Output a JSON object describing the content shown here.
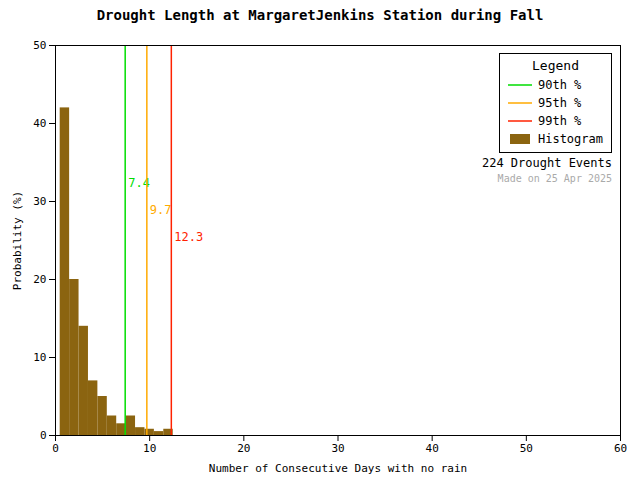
{
  "chart_data": {
    "type": "histogram",
    "title": "Drought Length at MargaretJenkins Station during Fall",
    "xlabel": "Number of Consecutive Days with no rain",
    "ylabel": "Probability (%)",
    "name": "Histogram",
    "color": "#8B6410",
    "bins": [
      0.5,
      1.5,
      2.5,
      3.5,
      4.5,
      5.5,
      6.5,
      7.5,
      8.5,
      9.5,
      10.5,
      11.5,
      12.5,
      13.5,
      14.5,
      15.5,
      16.5,
      17.5,
      18.5,
      19.5,
      20.5,
      21.5,
      22.5,
      23.5,
      24.5,
      25.5,
      26.5,
      27.5,
      28.5,
      29.5,
      30.5,
      31.5,
      32.5,
      33.5,
      34.5,
      35.5,
      36.5,
      37.5,
      38.5,
      39.5,
      40.5,
      41.5,
      42.5,
      43.5,
      44.5,
      45.5,
      46.5,
      47.5,
      48.5,
      49.5,
      50.5,
      51.5,
      52.5,
      53.5,
      54.5,
      55.5,
      56.5,
      57.5,
      58.5,
      59.5,
      60.5
    ],
    "values": [
      42.0,
      20.0,
      14.0,
      7.0,
      5.0,
      2.5,
      1.5,
      2.5,
      1.0,
      0.8,
      0.5,
      0.8,
      0.0,
      0.0,
      0.0,
      0.0,
      0.0,
      0.0,
      0.0,
      0.0,
      0.0,
      0.0,
      0.0,
      0.0,
      0.0,
      0.0,
      0.0,
      0.0,
      0.0,
      0.0,
      0.0,
      0.0,
      0.0,
      0.0,
      0.0,
      0.0,
      0.0,
      0.0,
      0.0,
      0.0,
      0.0,
      0.0,
      0.0,
      0.0,
      0.0,
      0.0,
      0.0,
      0.0,
      0.0,
      0.0,
      0.0,
      0.0,
      0.0,
      0.0,
      0.0,
      0.0,
      0.0,
      0.0,
      0.0,
      0.0
    ],
    "vlines": [
      {
        "name": "90th %",
        "value": 7.4,
        "color": "#00dd00"
      },
      {
        "name": "95th %",
        "value": 9.7,
        "color": "#ffaa00"
      },
      {
        "name": "99th %",
        "value": 12.3,
        "color": "#ff2200"
      }
    ],
    "xlim": [
      0,
      60
    ],
    "ylim": [
      0,
      50
    ],
    "xticks": [
      0,
      10,
      20,
      30,
      40,
      50,
      60
    ],
    "yticks": [
      0,
      10,
      20,
      30,
      40,
      50
    ],
    "grid": false,
    "legend": "upper right",
    "legend_title": "Legend",
    "annotations": [
      {
        "text": "224 Drought Events"
      },
      {
        "text": "Made on 25 Apr 2025",
        "color": "#aaaaaa"
      }
    ]
  }
}
